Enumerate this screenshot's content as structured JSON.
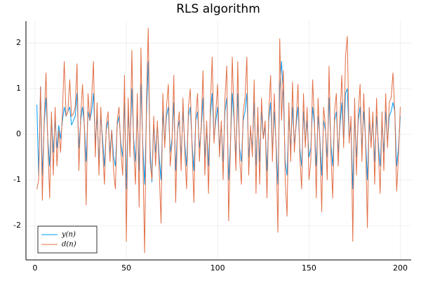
{
  "chart_data": {
    "type": "line",
    "title": "RLS algorithm",
    "x": [
      1,
      2,
      3,
      4,
      5,
      6,
      7,
      8,
      9,
      10,
      11,
      12,
      13,
      14,
      15,
      16,
      17,
      18,
      19,
      20,
      21,
      22,
      23,
      24,
      25,
      26,
      27,
      28,
      29,
      30,
      31,
      32,
      33,
      34,
      35,
      36,
      37,
      38,
      39,
      40,
      41,
      42,
      43,
      44,
      45,
      46,
      47,
      48,
      49,
      50,
      51,
      52,
      53,
      54,
      55,
      56,
      57,
      58,
      59,
      60,
      61,
      62,
      63,
      64,
      65,
      66,
      67,
      68,
      69,
      70,
      71,
      72,
      73,
      74,
      75,
      76,
      77,
      78,
      79,
      80,
      81,
      82,
      83,
      84,
      85,
      86,
      87,
      88,
      89,
      90,
      91,
      92,
      93,
      94,
      95,
      96,
      97,
      98,
      99,
      100,
      101,
      102,
      103,
      104,
      105,
      106,
      107,
      108,
      109,
      110,
      111,
      112,
      113,
      114,
      115,
      116,
      117,
      118,
      119,
      120,
      121,
      122,
      123,
      124,
      125,
      126,
      127,
      128,
      129,
      130,
      131,
      132,
      133,
      134,
      135,
      136,
      137,
      138,
      139,
      140,
      141,
      142,
      143,
      144,
      145,
      146,
      147,
      148,
      149,
      150,
      151,
      152,
      153,
      154,
      155,
      156,
      157,
      158,
      159,
      160,
      161,
      162,
      163,
      164,
      165,
      166,
      167,
      168,
      169,
      170,
      171,
      172,
      173,
      174,
      175,
      176,
      177,
      178,
      179,
      180,
      181,
      182,
      183,
      184,
      185,
      186,
      187,
      188,
      189,
      190,
      191,
      192,
      193,
      194,
      195,
      196,
      197,
      198,
      199,
      200
    ],
    "series": [
      {
        "name": "y(n)",
        "color": "#009af9",
        "values": [
          0.65,
          -0.9,
          1.05,
          -0.9,
          0.2,
          0.8,
          -0.1,
          -0.7,
          0.4,
          -0.4,
          0.3,
          -0.3,
          0.2,
          -0.1,
          0.3,
          0.6,
          0.4,
          0.5,
          0.6,
          0.2,
          0.3,
          0.4,
          0.9,
          -0.3,
          0.3,
          0.6,
          0.2,
          -0.6,
          0.5,
          0.3,
          0.5,
          0.9,
          -0.2,
          0.4,
          -0.6,
          0.4,
          -0.1,
          -0.7,
          0.1,
          0.3,
          -0.4,
          0.1,
          -0.5,
          -0.7,
          0.2,
          0.4,
          -0.2,
          -0.5,
          0.7,
          -1.2,
          0.5,
          -0.3,
          1.0,
          -0.1,
          -0.6,
          0.5,
          -0.8,
          1.1,
          -0.2,
          -1.1,
          0.4,
          1.6,
          -0.3,
          -1.05,
          0.2,
          -0.4,
          0.2,
          -0.5,
          -1.0,
          0.5,
          -0.2,
          0.4,
          0.6,
          -0.4,
          -0.1,
          0.7,
          -0.8,
          0.1,
          0.3,
          -0.5,
          0.5,
          -0.2,
          -0.7,
          0.4,
          0.6,
          -0.2,
          -0.8,
          0.3,
          0.5,
          -0.3,
          0.1,
          0.8,
          -0.5,
          0.2,
          -0.7,
          0.4,
          0.9,
          -0.1,
          0.3,
          0.6,
          -0.3,
          0.2,
          -0.6,
          0.5,
          0.8,
          -1.0,
          -0.2,
          0.9,
          0.3,
          -0.5,
          0.9,
          -0.3,
          -0.6,
          0.3,
          0.5,
          0.9,
          -0.5,
          0.1,
          -0.3,
          0.7,
          -0.7,
          0.4,
          -0.6,
          0.5,
          -0.1,
          0.2,
          -0.8,
          0.3,
          0.7,
          -0.4,
          0.5,
          -0.2,
          -1.1,
          1.0,
          1.6,
          0.8,
          -0.6,
          -0.9,
          0.4,
          -0.3,
          0.6,
          -0.2,
          0.2,
          0.6,
          -0.3,
          -0.7,
          0.5,
          -0.2,
          0.3,
          -0.5,
          -0.3,
          0.6,
          0.2,
          -0.7,
          0.4,
          -0.1,
          -0.9,
          0.3,
          0.1,
          -0.5,
          0.8,
          -0.2,
          -0.7,
          0.3,
          0.5,
          -0.4,
          0.2,
          0.7,
          -0.2,
          0.9,
          1.0,
          -0.1,
          0.2,
          -1.2,
          0.4,
          -0.5,
          0.3,
          0.6,
          -0.3,
          0.5,
          -0.1,
          -1.0,
          0.3,
          -0.2,
          0.3,
          -0.6,
          0.4,
          -0.2,
          -0.7,
          0.3,
          -0.4,
          0.5,
          -0.2,
          0.4,
          0.5,
          0.7,
          0.5,
          -0.7,
          -0.3,
          0.4
        ]
      },
      {
        "name": "d(n)",
        "color": "#e26f46",
        "values": [
          -1.2,
          -1.0,
          1.05,
          -1.45,
          0.3,
          1.35,
          -0.2,
          -1.4,
          0.5,
          -0.9,
          0.6,
          -0.7,
          0.1,
          -0.4,
          0.5,
          1.6,
          0.4,
          0.5,
          1.2,
          0.4,
          0.45,
          0.6,
          1.55,
          -0.8,
          0.4,
          1.1,
          0.2,
          -1.55,
          0.9,
          0.3,
          0.8,
          1.6,
          -0.5,
          0.7,
          -0.9,
          0.6,
          -0.3,
          -1.1,
          0.2,
          0.5,
          -0.6,
          0.1,
          -0.8,
          -1.2,
          0.3,
          0.6,
          -0.4,
          -0.9,
          1.3,
          -2.35,
          0.8,
          -0.5,
          1.85,
          -0.3,
          -1.1,
          0.9,
          -1.6,
          1.9,
          -0.4,
          -2.6,
          0.7,
          2.33,
          -0.6,
          -1.0,
          0.4,
          -0.7,
          0.3,
          -0.8,
          -1.95,
          0.9,
          -0.3,
          0.6,
          1.1,
          -0.7,
          -0.2,
          1.3,
          -1.5,
          0.1,
          0.5,
          -0.8,
          0.8,
          -0.4,
          -1.2,
          0.6,
          1.0,
          -0.3,
          -1.5,
          0.4,
          0.9,
          -0.6,
          0.2,
          1.4,
          -0.9,
          0.3,
          -1.3,
          0.6,
          1.7,
          -0.2,
          0.5,
          1.1,
          -0.5,
          0.3,
          -1.0,
          0.8,
          1.5,
          -1.9,
          -0.3,
          1.7,
          0.4,
          -0.8,
          1.6,
          -0.5,
          -1.1,
          0.5,
          0.8,
          1.7,
          -0.9,
          0.2,
          -0.5,
          1.2,
          -1.3,
          0.6,
          -1.1,
          0.8,
          -0.1,
          0.3,
          -1.4,
          0.5,
          1.3,
          -0.6,
          0.9,
          -0.3,
          -2.15,
          2.1,
          0.3,
          1.4,
          -1.0,
          -1.8,
          0.7,
          -0.6,
          1.15,
          -0.4,
          0.3,
          1.1,
          -0.5,
          -1.2,
          0.9,
          -0.3,
          0.6,
          -1.0,
          -0.6,
          1.2,
          0.3,
          -1.4,
          0.8,
          -0.2,
          -1.7,
          0.6,
          0.2,
          -1.0,
          1.5,
          -0.4,
          -1.4,
          0.5,
          0.9,
          -0.7,
          0.4,
          1.3,
          -0.3,
          1.7,
          2.15,
          -0.2,
          0.4,
          -2.35,
          0.8,
          -0.9,
          0.5,
          1.1,
          -0.6,
          0.9,
          -0.2,
          -2.05,
          0.6,
          -0.3,
          0.5,
          -1.1,
          0.8,
          -0.4,
          -1.3,
          0.5,
          -0.8,
          0.9,
          -0.3,
          0.7,
          0.8,
          1.35,
          0.5,
          -1.25,
          -0.5,
          0.6
        ]
      }
    ],
    "xlim": [
      -4.97,
      205.97
    ],
    "xticks": [
      0,
      50,
      100,
      150,
      200
    ],
    "ylim": [
      -2.75,
      2.48
    ],
    "yticks": [
      -2,
      -1,
      0,
      1,
      2
    ],
    "grid": true,
    "legend": "bottom-left"
  }
}
